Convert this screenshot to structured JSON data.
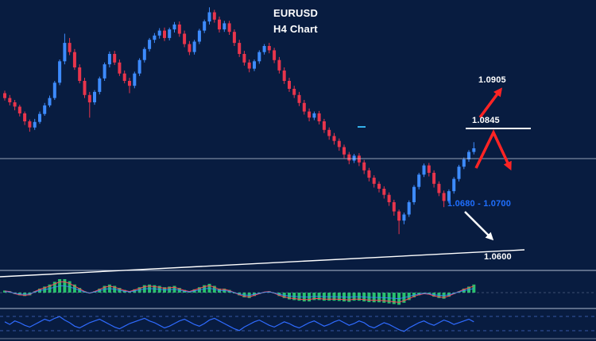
{
  "title": {
    "symbol": "EURUSD",
    "timeframe_label": "H4 Chart"
  },
  "labels": {
    "upper_target": "1.0905",
    "resistance": "1.0845",
    "support_zone": "1.0680 - 1.0700",
    "trendline_level": "1.0600"
  },
  "colors": {
    "background": "#081c40",
    "candle_up": "#3d8bfd",
    "candle_down": "#e8354c",
    "macd_bar": "#27c16d",
    "macd_signal": "#ff4455",
    "macd_line": "#3d8bfd",
    "oscillator": "#2f6bff",
    "annotation_red": "#ff2424",
    "annotation_white": "#ffffff",
    "support_zone_label": "#1f6fff",
    "grid_line": "#cfd8e8"
  },
  "chart_data": {
    "type": "candlestick",
    "symbol": "EURUSD",
    "timeframe": "H4",
    "title": "EURUSD H4 Chart",
    "bars": 95,
    "price_axis": {
      "min": 1.062,
      "max": 1.106
    },
    "levels": {
      "upper_target": 1.0905,
      "resistance": 1.0845,
      "support_zone_low": 1.068,
      "support_zone_high": 1.07,
      "ascending_trendline_label": 1.06,
      "horizontal_level": 1.08
    },
    "pip_note": "price = 1 + pips/10000",
    "candles_ohlc_pips": [
      [
        908,
        912,
        896,
        900
      ],
      [
        900,
        905,
        888,
        893
      ],
      [
        893,
        897,
        880,
        886
      ],
      [
        886,
        889,
        870,
        875
      ],
      [
        875,
        878,
        856,
        862
      ],
      [
        862,
        865,
        845,
        852
      ],
      [
        852,
        866,
        848,
        861
      ],
      [
        861,
        878,
        858,
        874
      ],
      [
        874,
        892,
        871,
        888
      ],
      [
        888,
        904,
        885,
        900
      ],
      [
        900,
        928,
        897,
        925
      ],
      [
        925,
        963,
        921,
        960
      ],
      [
        960,
        1005,
        955,
        990
      ],
      [
        990,
        998,
        970,
        975
      ],
      [
        975,
        980,
        946,
        950
      ],
      [
        950,
        955,
        924,
        928
      ],
      [
        928,
        933,
        900,
        905
      ],
      [
        905,
        910,
        868,
        893
      ],
      [
        893,
        913,
        889,
        910
      ],
      [
        910,
        935,
        906,
        932
      ],
      [
        932,
        958,
        928,
        955
      ],
      [
        955,
        976,
        950,
        972
      ],
      [
        972,
        977,
        954,
        958
      ],
      [
        958,
        963,
        936,
        940
      ],
      [
        940,
        945,
        924,
        928
      ],
      [
        928,
        933,
        908,
        920
      ],
      [
        920,
        943,
        916,
        940
      ],
      [
        940,
        965,
        936,
        962
      ],
      [
        962,
        983,
        958,
        980
      ],
      [
        980,
        998,
        976,
        995
      ],
      [
        995,
        1006,
        990,
        1002
      ],
      [
        1002,
        1014,
        997,
        1010
      ],
      [
        1010,
        1015,
        993,
        998
      ],
      [
        998,
        1015,
        994,
        1012
      ],
      [
        1012,
        1024,
        1007,
        1020
      ],
      [
        1020,
        1025,
        1000,
        1005
      ],
      [
        1005,
        1010,
        983,
        988
      ],
      [
        988,
        993,
        970,
        975
      ],
      [
        975,
        995,
        971,
        992
      ],
      [
        992,
        1013,
        988,
        1010
      ],
      [
        1010,
        1028,
        1006,
        1025
      ],
      [
        1025,
        1048,
        1020,
        1040
      ],
      [
        1040,
        1044,
        1023,
        1028
      ],
      [
        1028,
        1033,
        1007,
        1012
      ],
      [
        1012,
        1026,
        1008,
        1022
      ],
      [
        1022,
        1026,
        1003,
        1008
      ],
      [
        1008,
        1012,
        985,
        990
      ],
      [
        990,
        995,
        967,
        972
      ],
      [
        972,
        977,
        953,
        958
      ],
      [
        958,
        963,
        942,
        948
      ],
      [
        948,
        963,
        944,
        960
      ],
      [
        960,
        978,
        956,
        975
      ],
      [
        975,
        988,
        971,
        985
      ],
      [
        985,
        990,
        973,
        978
      ],
      [
        978,
        982,
        957,
        962
      ],
      [
        962,
        967,
        940,
        945
      ],
      [
        945,
        950,
        923,
        928
      ],
      [
        928,
        933,
        910,
        915
      ],
      [
        915,
        920,
        900,
        905
      ],
      [
        905,
        910,
        887,
        892
      ],
      [
        892,
        897,
        873,
        878
      ],
      [
        878,
        883,
        862,
        868
      ],
      [
        868,
        878,
        864,
        875
      ],
      [
        875,
        879,
        857,
        862
      ],
      [
        862,
        866,
        843,
        848
      ],
      [
        848,
        852,
        832,
        838
      ],
      [
        838,
        843,
        824,
        830
      ],
      [
        830,
        834,
        814,
        820
      ],
      [
        820,
        824,
        802,
        808
      ],
      [
        808,
        812,
        792,
        798
      ],
      [
        798,
        809,
        794,
        806
      ],
      [
        806,
        810,
        789,
        795
      ],
      [
        795,
        799,
        776,
        782
      ],
      [
        782,
        786,
        764,
        770
      ],
      [
        770,
        774,
        754,
        760
      ],
      [
        760,
        764,
        746,
        752
      ],
      [
        752,
        756,
        736,
        742
      ],
      [
        742,
        746,
        724,
        730
      ],
      [
        730,
        734,
        708,
        715
      ],
      [
        715,
        718,
        678,
        700
      ],
      [
        700,
        713,
        694,
        710
      ],
      [
        710,
        733,
        706,
        730
      ],
      [
        730,
        758,
        726,
        755
      ],
      [
        755,
        778,
        751,
        775
      ],
      [
        775,
        793,
        771,
        790
      ],
      [
        790,
        794,
        772,
        778
      ],
      [
        778,
        782,
        754,
        760
      ],
      [
        760,
        764,
        740,
        745
      ],
      [
        745,
        749,
        722,
        732
      ],
      [
        732,
        751,
        728,
        748
      ],
      [
        748,
        771,
        744,
        768
      ],
      [
        768,
        791,
        764,
        788
      ],
      [
        788,
        803,
        784,
        800
      ],
      [
        800,
        815,
        796,
        812
      ],
      [
        812,
        828,
        808,
        818
      ]
    ],
    "macd_histogram": [
      0.15,
      0.1,
      -0.1,
      -0.2,
      -0.25,
      -0.2,
      0.1,
      0.3,
      0.45,
      0.6,
      0.8,
      1.0,
      1.0,
      0.85,
      0.6,
      0.35,
      0.1,
      -0.05,
      0.1,
      0.3,
      0.5,
      0.6,
      0.5,
      0.35,
      0.2,
      0.1,
      0.25,
      0.4,
      0.55,
      0.6,
      0.55,
      0.5,
      0.4,
      0.45,
      0.5,
      0.35,
      0.2,
      0.1,
      0.25,
      0.4,
      0.55,
      0.65,
      0.5,
      0.3,
      0.3,
      0.2,
      0.0,
      -0.2,
      -0.35,
      -0.4,
      -0.25,
      -0.1,
      0.05,
      0.1,
      -0.05,
      -0.25,
      -0.4,
      -0.5,
      -0.55,
      -0.6,
      -0.65,
      -0.65,
      -0.55,
      -0.55,
      -0.6,
      -0.6,
      -0.6,
      -0.62,
      -0.65,
      -0.68,
      -0.6,
      -0.6,
      -0.65,
      -0.7,
      -0.72,
      -0.72,
      -0.75,
      -0.8,
      -0.85,
      -0.9,
      -0.75,
      -0.55,
      -0.35,
      -0.2,
      -0.1,
      -0.15,
      -0.3,
      -0.4,
      -0.45,
      -0.3,
      -0.1,
      0.1,
      0.3,
      0.45,
      0.6
    ],
    "oscillator": [
      0.2,
      -0.1,
      0.3,
      0.1,
      -0.2,
      -0.4,
      -0.1,
      0.2,
      0.5,
      0.3,
      0.6,
      0.8,
      0.4,
      0.1,
      -0.3,
      -0.5,
      -0.2,
      0.1,
      0.3,
      0.5,
      0.2,
      -0.1,
      -0.4,
      -0.6,
      -0.3,
      0.0,
      0.2,
      0.4,
      0.6,
      0.3,
      0.1,
      -0.2,
      -0.5,
      -0.3,
      0.0,
      0.3,
      0.5,
      0.2,
      -0.1,
      -0.3,
      0.0,
      0.4,
      0.6,
      0.3,
      0.0,
      -0.3,
      -0.6,
      -0.8,
      -0.4,
      -0.1,
      0.2,
      0.4,
      0.1,
      -0.2,
      -0.4,
      -0.1,
      0.2,
      0.0,
      -0.3,
      -0.5,
      -0.2,
      0.1,
      0.3,
      0.0,
      -0.3,
      -0.1,
      0.2,
      0.4,
      0.1,
      -0.2,
      0.0,
      0.3,
      0.1,
      -0.3,
      -0.5,
      -0.2,
      0.1,
      -0.1,
      -0.4,
      -0.7,
      -0.9,
      -0.5,
      -0.2,
      0.1,
      0.3,
      0.0,
      -0.2,
      0.1,
      0.4,
      0.2,
      -0.1,
      0.1,
      0.3,
      0.5,
      0.2
    ]
  }
}
